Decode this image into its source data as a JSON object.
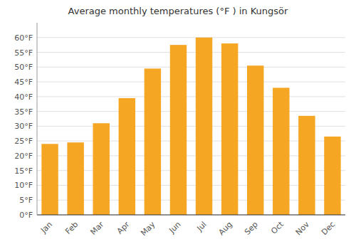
{
  "chart_data": {
    "type": "bar",
    "title": "Average monthly temperatures (°F ) in Kungsör",
    "categories": [
      "Jan",
      "Feb",
      "Mar",
      "Apr",
      "May",
      "Jun",
      "Jul",
      "Aug",
      "Sep",
      "Oct",
      "Nov",
      "Dec"
    ],
    "values": [
      24,
      24.5,
      31,
      39.5,
      49.5,
      57.5,
      60,
      58,
      50.5,
      43,
      33.5,
      26.5
    ],
    "color": "#F5A623",
    "ylim": [
      0,
      65
    ],
    "yticks": [
      {
        "value": 0,
        "label": "0°F"
      },
      {
        "value": 5,
        "label": "5°F"
      },
      {
        "value": 10,
        "label": "10°F"
      },
      {
        "value": 15,
        "label": "15°F"
      },
      {
        "value": 20,
        "label": "20°F"
      },
      {
        "value": 25,
        "label": "25°F"
      },
      {
        "value": 30,
        "label": "30°F"
      },
      {
        "value": 35,
        "label": "35°F"
      },
      {
        "value": 40,
        "label": "40°F"
      },
      {
        "value": 45,
        "label": "45°F"
      },
      {
        "value": 50,
        "label": "50°F"
      },
      {
        "value": 55,
        "label": "55°F"
      },
      {
        "value": 60,
        "label": "60°F"
      }
    ],
    "grid": true
  }
}
